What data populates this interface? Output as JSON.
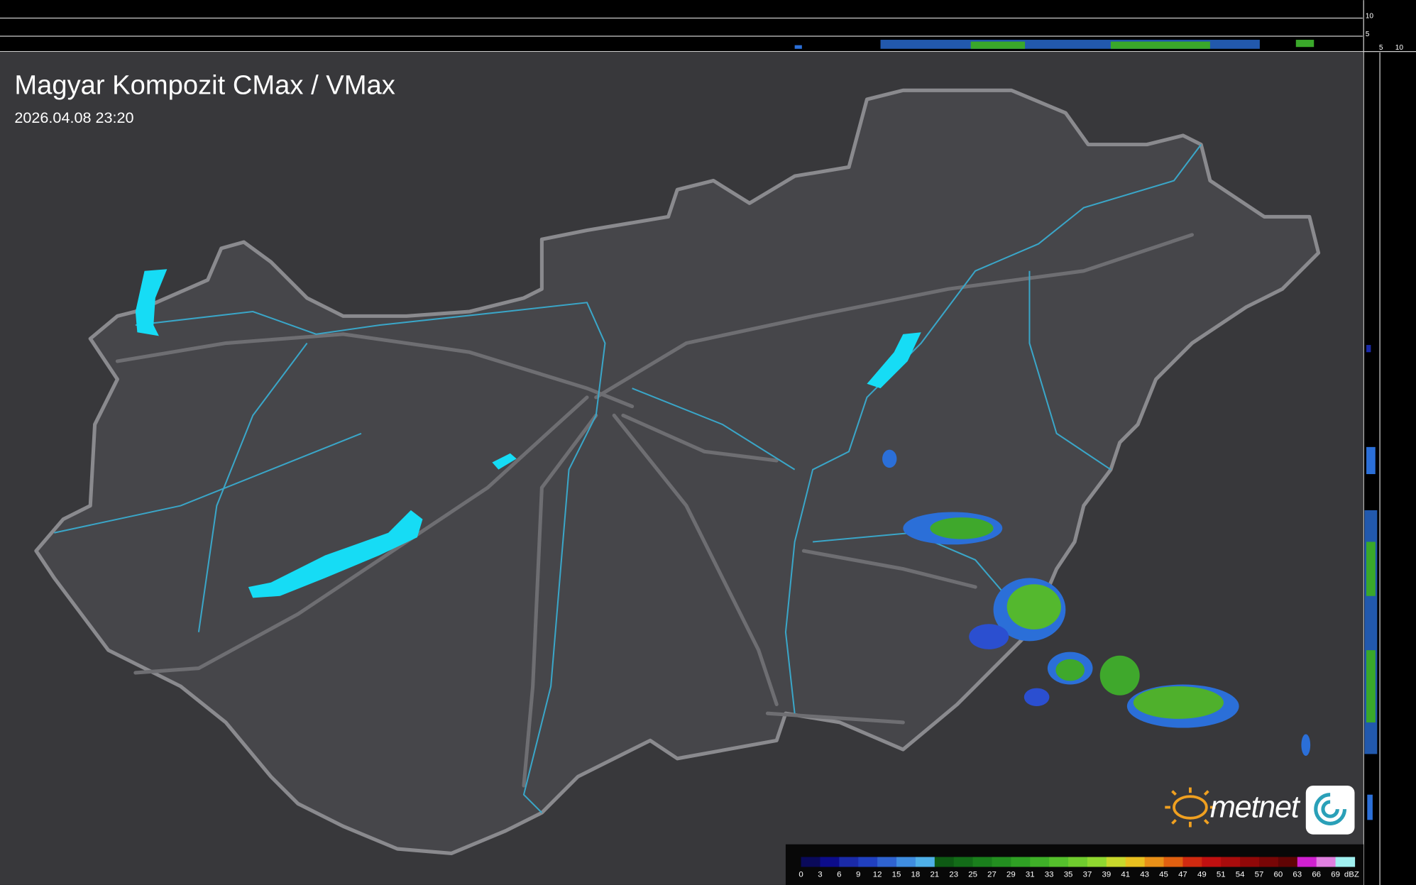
{
  "header": {
    "title": "Magyar Kompozit CMax / VMax",
    "timestamp": "2026.04.08 23:20"
  },
  "profile_axes": {
    "top": [
      "10",
      "5"
    ],
    "side": [
      "5",
      "10"
    ]
  },
  "logo": "metnet",
  "legend": {
    "labels": [
      "0",
      "3",
      "6",
      "9",
      "12",
      "15",
      "18",
      "21",
      "23",
      "25",
      "27",
      "29",
      "31",
      "33",
      "35",
      "37",
      "39",
      "41",
      "43",
      "45",
      "47",
      "49",
      "51",
      "54",
      "57",
      "60",
      "63",
      "66",
      "69"
    ],
    "unit": "dBZ",
    "colors": [
      "#0a0a5a",
      "#0c0c8a",
      "#1a2aa8",
      "#2040c0",
      "#2f63d0",
      "#3f8de0",
      "#4fb0e8",
      "#0e5a14",
      "#136c18",
      "#1a7f1c",
      "#238f20",
      "#2fa024",
      "#3fb028",
      "#55c02c",
      "#70cc2e",
      "#90d830",
      "#c8d82c",
      "#e8c020",
      "#e89018",
      "#e06010",
      "#d02a10",
      "#c01010",
      "#a80c0c",
      "#900808",
      "#780606",
      "#600404",
      "#d020d0",
      "#e080e0",
      "#a0f0f0"
    ]
  }
}
